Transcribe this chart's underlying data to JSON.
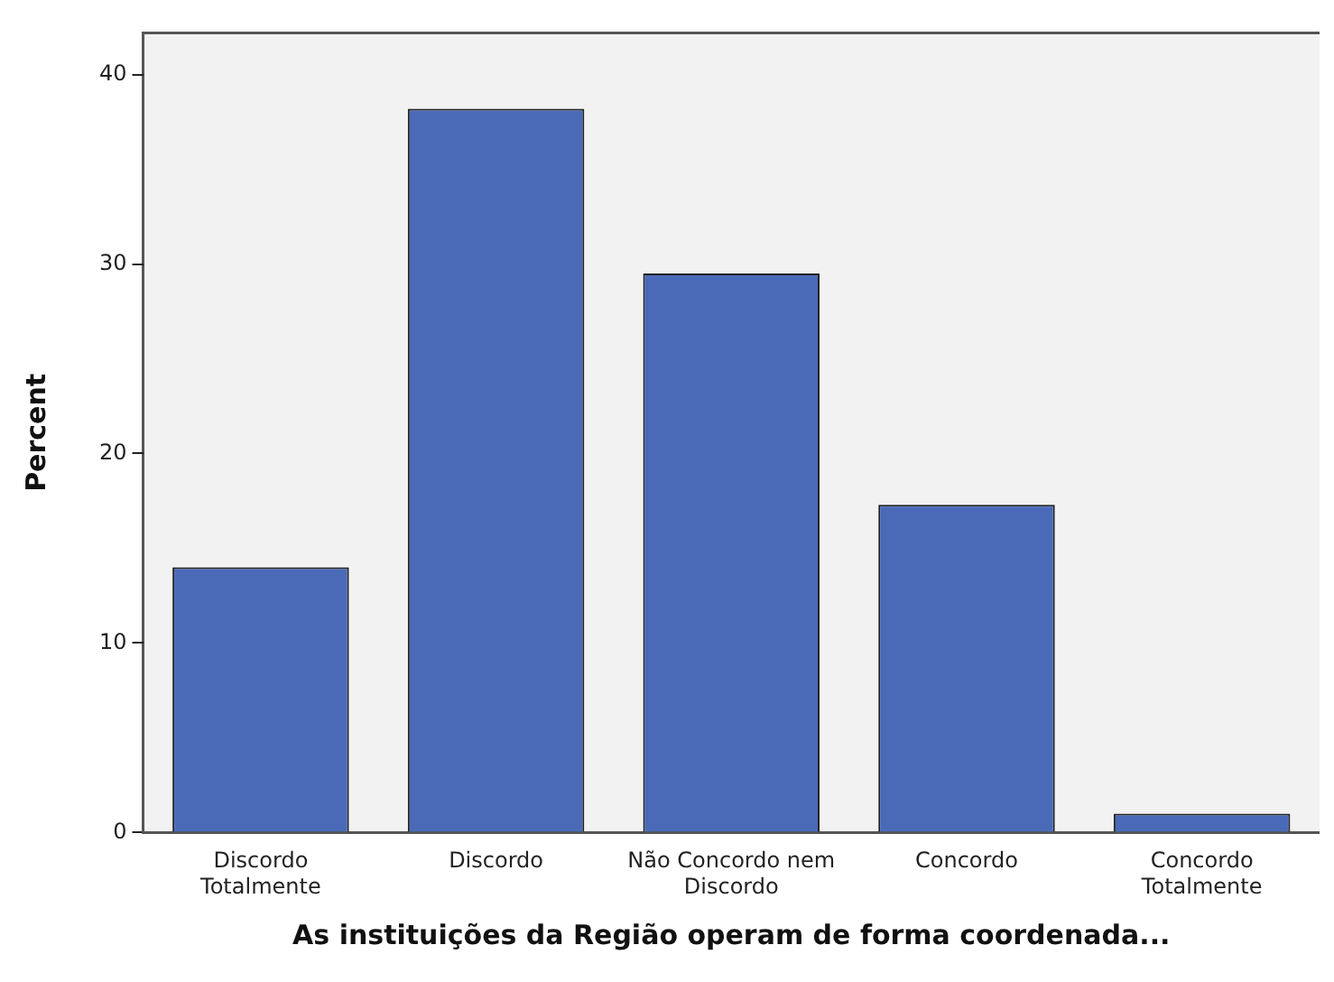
{
  "chart_data": {
    "type": "bar",
    "xlabel": "As instituições da Região operam de forma coordenada...",
    "ylabel": "Percent",
    "categories": [
      "Discordo Totalmente",
      "Discordo",
      "Não Concordo nem Discordo",
      "Concordo",
      "Concordo Totalmente"
    ],
    "values": [
      14.0,
      38.2,
      29.5,
      17.3,
      1.0
    ],
    "color": "#4a6ab8",
    "ylim": [
      0,
      42.2
    ],
    "yticks": [
      0,
      10,
      20,
      30,
      40
    ],
    "grid": false,
    "legend": false
  }
}
